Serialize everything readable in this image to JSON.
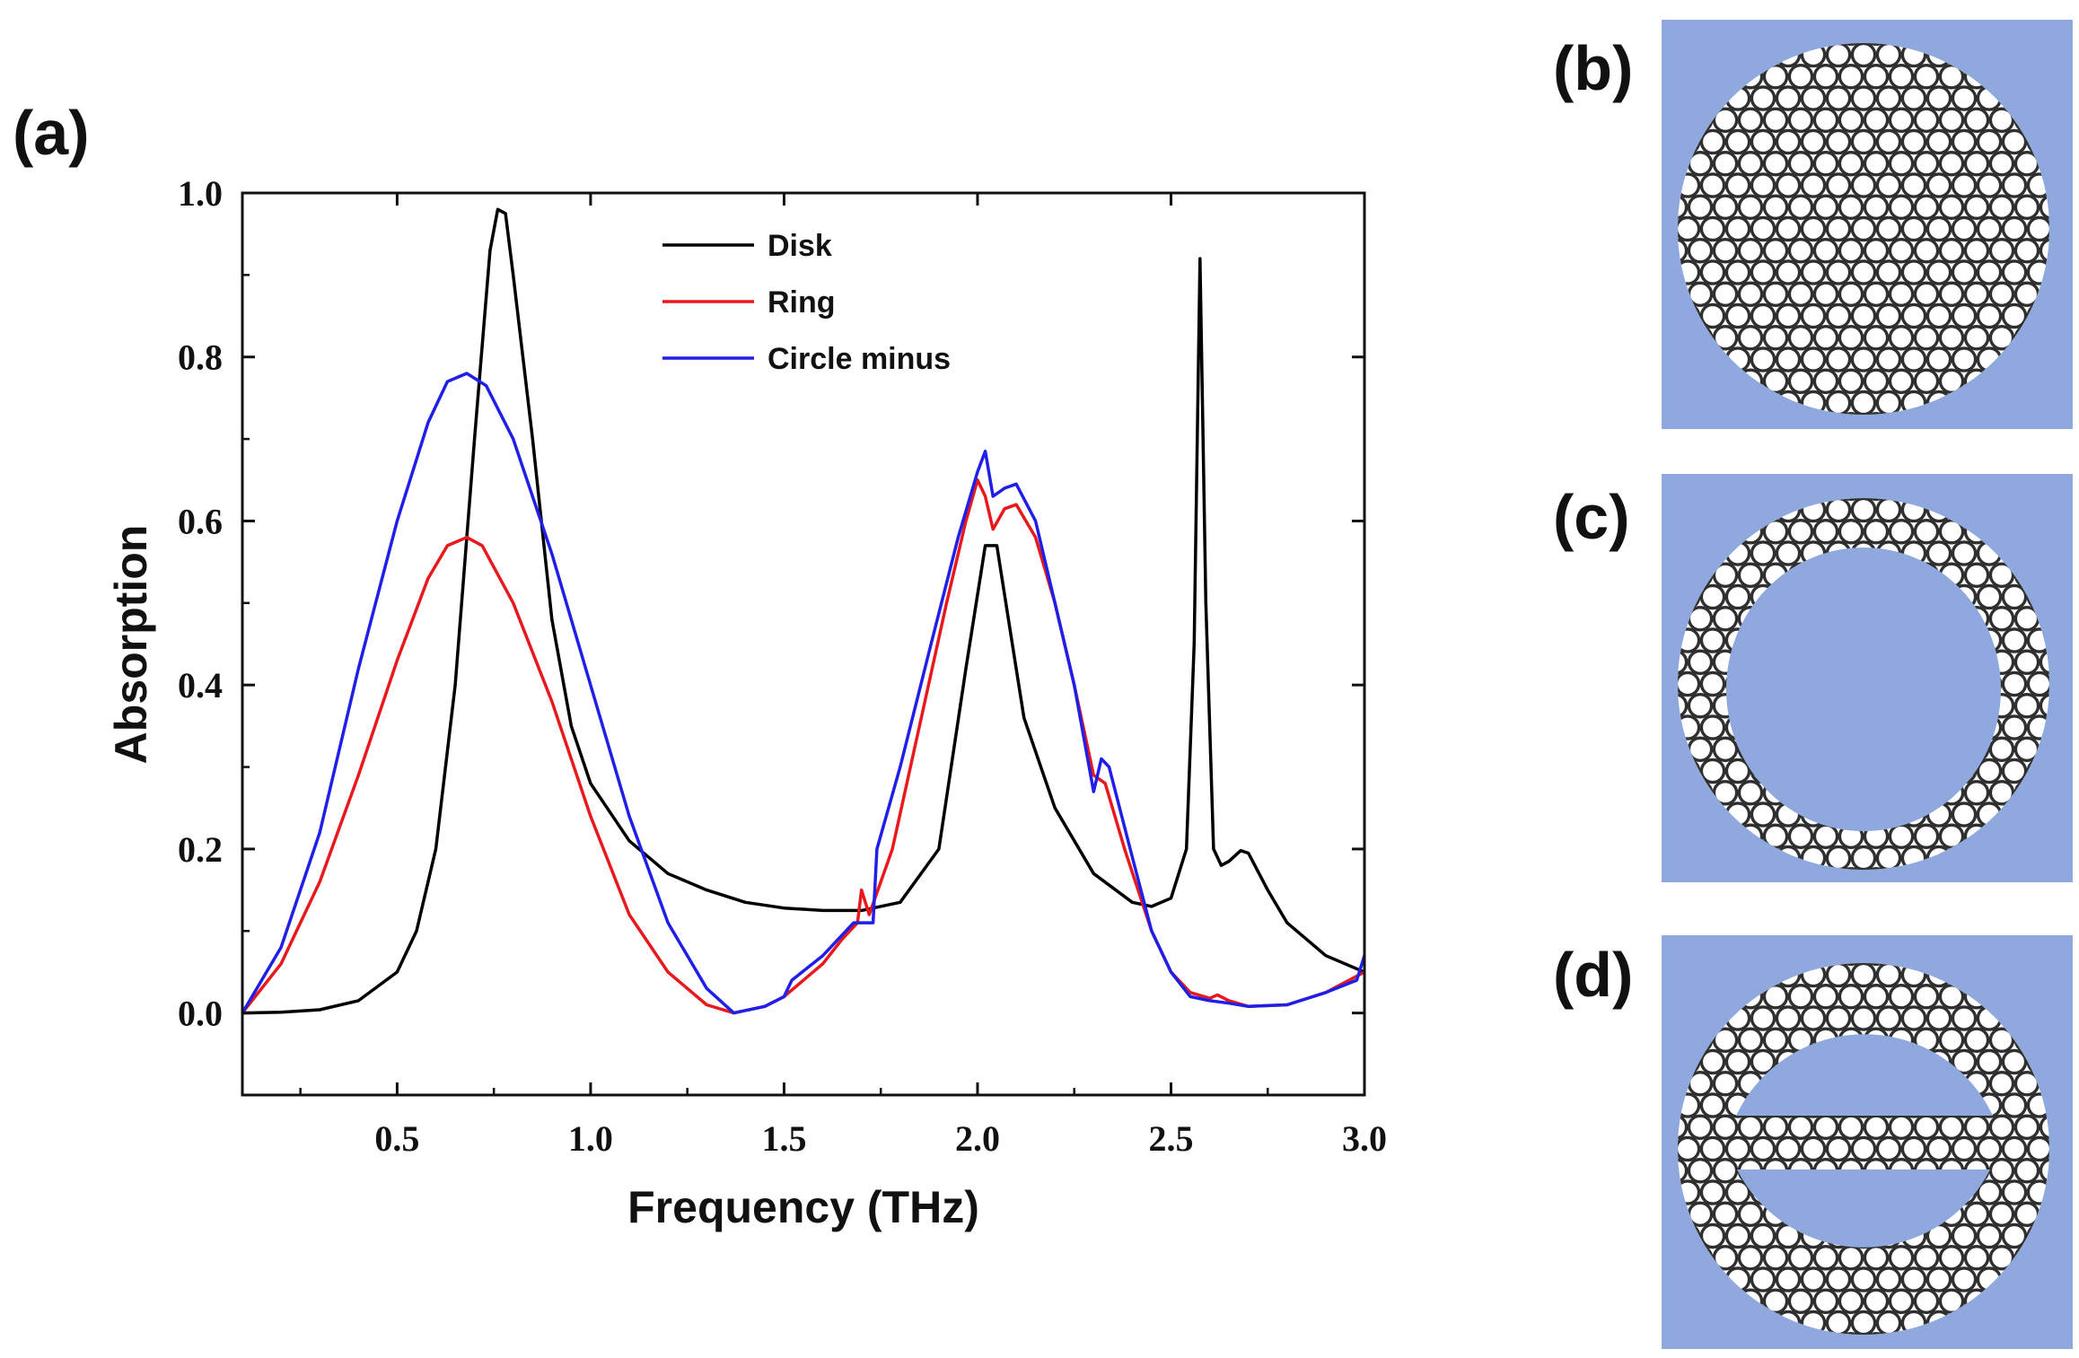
{
  "panels": {
    "a": "(a)",
    "b": "(b)",
    "c": "(c)",
    "d": "(d)"
  },
  "colors": {
    "disk": "#000000",
    "ring": "#e8191d",
    "circle_minus": "#1f1fe8",
    "pattern_bg": "#8fa9de",
    "hole": "#ffffff",
    "frame": "#2f2f2f"
  },
  "chart_data": {
    "type": "line",
    "title": "",
    "xlabel": "Frequency (THz)",
    "ylabel": "Absorption",
    "xlim": [
      0.1,
      3.0
    ],
    "ylim": [
      -0.1,
      1.0
    ],
    "xticks": [
      0.5,
      1.0,
      1.5,
      2.0,
      2.5,
      3.0
    ],
    "xtick_labels": [
      "0.5",
      "1.0",
      "1.5",
      "2.0",
      "2.5",
      "3.0"
    ],
    "yticks": [
      0.0,
      0.2,
      0.4,
      0.6,
      0.8,
      1.0
    ],
    "ytick_labels": [
      "0.0",
      "0.2",
      "0.4",
      "0.6",
      "0.8",
      "1.0"
    ],
    "legend_position": "top-center",
    "grid": false,
    "series": [
      {
        "name": "Disk",
        "color": "#000000",
        "points": [
          [
            0.1,
            0.0
          ],
          [
            0.2,
            0.001
          ],
          [
            0.3,
            0.004
          ],
          [
            0.4,
            0.015
          ],
          [
            0.5,
            0.05
          ],
          [
            0.55,
            0.1
          ],
          [
            0.6,
            0.2
          ],
          [
            0.65,
            0.4
          ],
          [
            0.7,
            0.7
          ],
          [
            0.74,
            0.93
          ],
          [
            0.76,
            0.98
          ],
          [
            0.78,
            0.975
          ],
          [
            0.8,
            0.9
          ],
          [
            0.85,
            0.7
          ],
          [
            0.9,
            0.48
          ],
          [
            0.95,
            0.35
          ],
          [
            1.0,
            0.28
          ],
          [
            1.1,
            0.21
          ],
          [
            1.2,
            0.17
          ],
          [
            1.3,
            0.15
          ],
          [
            1.4,
            0.135
          ],
          [
            1.5,
            0.128
          ],
          [
            1.6,
            0.125
          ],
          [
            1.7,
            0.125
          ],
          [
            1.8,
            0.135
          ],
          [
            1.9,
            0.2
          ],
          [
            1.97,
            0.42
          ],
          [
            2.02,
            0.57
          ],
          [
            2.05,
            0.57
          ],
          [
            2.08,
            0.48
          ],
          [
            2.12,
            0.36
          ],
          [
            2.2,
            0.25
          ],
          [
            2.3,
            0.17
          ],
          [
            2.4,
            0.135
          ],
          [
            2.45,
            0.13
          ],
          [
            2.5,
            0.14
          ],
          [
            2.54,
            0.2
          ],
          [
            2.56,
            0.45
          ],
          [
            2.575,
            0.92
          ],
          [
            2.59,
            0.5
          ],
          [
            2.61,
            0.2
          ],
          [
            2.63,
            0.18
          ],
          [
            2.65,
            0.185
          ],
          [
            2.68,
            0.198
          ],
          [
            2.7,
            0.195
          ],
          [
            2.75,
            0.15
          ],
          [
            2.8,
            0.11
          ],
          [
            2.9,
            0.07
          ],
          [
            3.0,
            0.05
          ]
        ]
      },
      {
        "name": "Ring",
        "color": "#e8191d",
        "points": [
          [
            0.1,
            0.0
          ],
          [
            0.2,
            0.06
          ],
          [
            0.3,
            0.16
          ],
          [
            0.4,
            0.29
          ],
          [
            0.5,
            0.43
          ],
          [
            0.58,
            0.53
          ],
          [
            0.63,
            0.57
          ],
          [
            0.68,
            0.58
          ],
          [
            0.72,
            0.57
          ],
          [
            0.8,
            0.5
          ],
          [
            0.9,
            0.38
          ],
          [
            1.0,
            0.24
          ],
          [
            1.1,
            0.12
          ],
          [
            1.2,
            0.05
          ],
          [
            1.3,
            0.01
          ],
          [
            1.37,
            0.0
          ],
          [
            1.45,
            0.008
          ],
          [
            1.5,
            0.02
          ],
          [
            1.55,
            0.04
          ],
          [
            1.6,
            0.06
          ],
          [
            1.65,
            0.09
          ],
          [
            1.69,
            0.11
          ],
          [
            1.7,
            0.15
          ],
          [
            1.72,
            0.12
          ],
          [
            1.78,
            0.2
          ],
          [
            1.85,
            0.35
          ],
          [
            1.92,
            0.5
          ],
          [
            1.97,
            0.6
          ],
          [
            2.0,
            0.65
          ],
          [
            2.02,
            0.63
          ],
          [
            2.04,
            0.59
          ],
          [
            2.07,
            0.615
          ],
          [
            2.1,
            0.62
          ],
          [
            2.15,
            0.58
          ],
          [
            2.2,
            0.5
          ],
          [
            2.25,
            0.4
          ],
          [
            2.3,
            0.29
          ],
          [
            2.33,
            0.28
          ],
          [
            2.38,
            0.2
          ],
          [
            2.45,
            0.1
          ],
          [
            2.5,
            0.05
          ],
          [
            2.55,
            0.025
          ],
          [
            2.6,
            0.018
          ],
          [
            2.62,
            0.022
          ],
          [
            2.65,
            0.015
          ],
          [
            2.7,
            0.008
          ],
          [
            2.8,
            0.01
          ],
          [
            2.9,
            0.025
          ],
          [
            3.0,
            0.05
          ]
        ]
      },
      {
        "name": "Circle minus",
        "color": "#1f1fe8",
        "points": [
          [
            0.1,
            0.0
          ],
          [
            0.2,
            0.08
          ],
          [
            0.3,
            0.22
          ],
          [
            0.4,
            0.42
          ],
          [
            0.5,
            0.6
          ],
          [
            0.58,
            0.72
          ],
          [
            0.63,
            0.77
          ],
          [
            0.68,
            0.78
          ],
          [
            0.73,
            0.765
          ],
          [
            0.8,
            0.7
          ],
          [
            0.9,
            0.56
          ],
          [
            1.0,
            0.4
          ],
          [
            1.1,
            0.24
          ],
          [
            1.2,
            0.11
          ],
          [
            1.3,
            0.03
          ],
          [
            1.37,
            0.0
          ],
          [
            1.45,
            0.008
          ],
          [
            1.5,
            0.02
          ],
          [
            1.52,
            0.04
          ],
          [
            1.6,
            0.07
          ],
          [
            1.68,
            0.11
          ],
          [
            1.73,
            0.11
          ],
          [
            1.74,
            0.2
          ],
          [
            1.8,
            0.3
          ],
          [
            1.88,
            0.45
          ],
          [
            1.95,
            0.58
          ],
          [
            2.0,
            0.66
          ],
          [
            2.02,
            0.685
          ],
          [
            2.04,
            0.63
          ],
          [
            2.07,
            0.64
          ],
          [
            2.1,
            0.645
          ],
          [
            2.15,
            0.6
          ],
          [
            2.2,
            0.5
          ],
          [
            2.25,
            0.4
          ],
          [
            2.3,
            0.27
          ],
          [
            2.32,
            0.31
          ],
          [
            2.34,
            0.3
          ],
          [
            2.4,
            0.19
          ],
          [
            2.45,
            0.1
          ],
          [
            2.5,
            0.05
          ],
          [
            2.55,
            0.02
          ],
          [
            2.6,
            0.015
          ],
          [
            2.65,
            0.012
          ],
          [
            2.7,
            0.008
          ],
          [
            2.8,
            0.01
          ],
          [
            2.9,
            0.025
          ],
          [
            2.98,
            0.04
          ],
          [
            3.0,
            0.07
          ]
        ]
      }
    ]
  }
}
